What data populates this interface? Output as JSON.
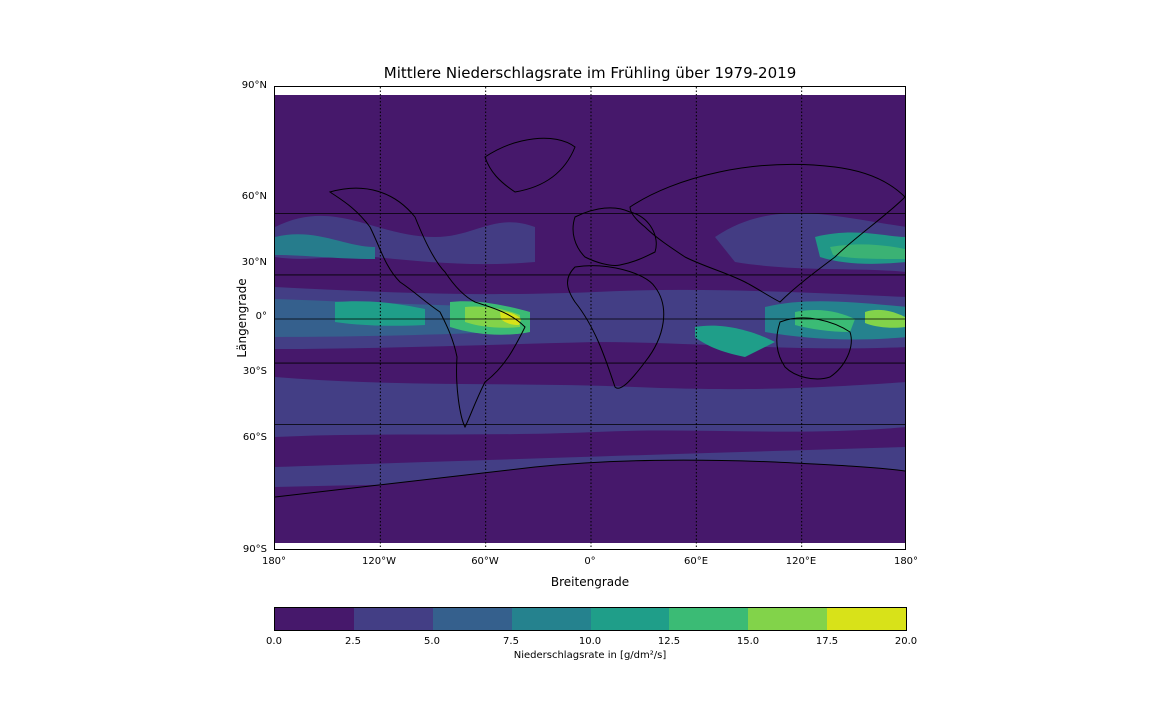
{
  "title": "Mittlere Niederschlagsrate im Frühling über 1979-2019",
  "axes": {
    "xlabel": "Breitengrade",
    "ylabel": "Längengrade",
    "lat_ticks": [
      "90°N",
      "60°N",
      "30°N",
      "0°",
      "30°S",
      "60°S",
      "90°S"
    ],
    "lon_ticks": [
      "180°",
      "120°W",
      "60°W",
      "0°",
      "60°E",
      "120°E",
      "180°"
    ]
  },
  "colorbar": {
    "label": "Niederschlagsrate in [g/dm²/s]",
    "ticks": [
      "0.0",
      "2.5",
      "5.0",
      "7.5",
      "10.0",
      "12.5",
      "15.0",
      "17.5",
      "20.0"
    ],
    "colors": [
      "#46186b",
      "#433e85",
      "#35608d",
      "#25828e",
      "#1f9e89",
      "#3bbb75",
      "#82d34a",
      "#d8e219"
    ]
  },
  "chart_data": {
    "type": "heatmap",
    "title": "Mittlere Niederschlagsrate im Frühling über 1979-2019",
    "xlabel": "Breitengrade",
    "ylabel": "Längengrade",
    "xlim": [
      -180,
      180
    ],
    "ylim": [
      -90,
      90
    ],
    "value_range": [
      0,
      20
    ],
    "levels": [
      0,
      2.5,
      5,
      7.5,
      10,
      12.5,
      15,
      17.5,
      20
    ],
    "gridlines": {
      "lat": [
        60,
        30,
        0,
        -30,
        -60
      ],
      "lon": [
        -120,
        -60,
        0,
        60,
        120
      ]
    }
  }
}
